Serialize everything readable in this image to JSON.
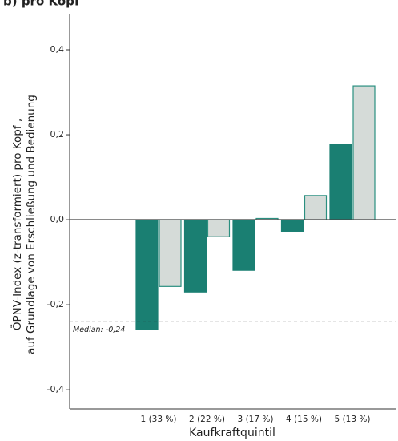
{
  "chart_data": {
    "type": "bar",
    "title": "b) pro Kopf",
    "x_label": "Kaufkraftquintil",
    "y_label": [
      "ÖPNV-Index (z-transformiert) pro Kopf ,",
      "auf Grundlage von Erschließung und Bedienung"
    ],
    "categories": [
      "1 (33 %)",
      "2 (22 %)",
      "3 (17 %)",
      "4 (15 %)",
      "5 (13 %)"
    ],
    "series": [
      {
        "color": "#1a7f72",
        "stroke": "#1a7f72",
        "values": [
          -0.258,
          -0.17,
          -0.119,
          -0.027,
          0.177
        ]
      },
      {
        "color": "#d5dbd8",
        "stroke": "#2a8f80",
        "values": [
          -0.157,
          -0.04,
          0.003,
          0.057,
          0.315
        ]
      }
    ],
    "ylim": [
      -0.445,
      0.483
    ],
    "yticks": [
      {
        "value": -0.4,
        "label": "-0,4"
      },
      {
        "value": -0.2,
        "label": "-0,2"
      },
      {
        "value": 0,
        "label": "0,0"
      },
      {
        "value": 0.2,
        "label": "0,2"
      },
      {
        "value": 0.4,
        "label": "0,4"
      }
    ],
    "reference_line": {
      "value": -0.24,
      "label": "Median: -0,24"
    },
    "grid": false
  }
}
